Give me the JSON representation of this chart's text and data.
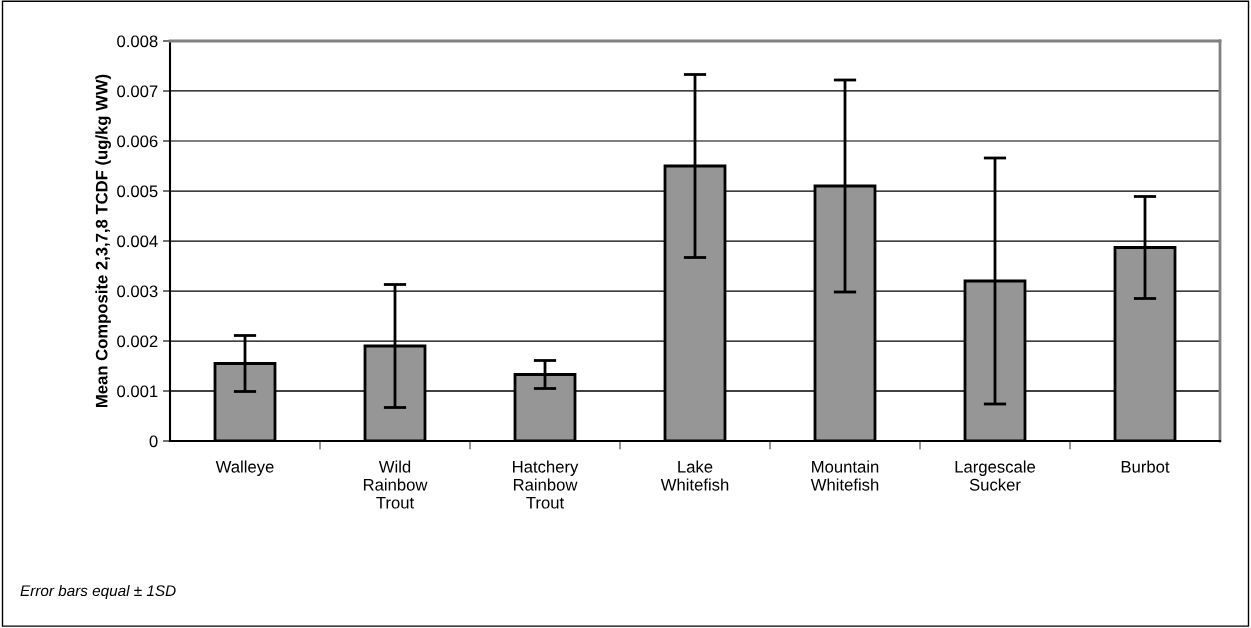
{
  "chart_data": {
    "type": "bar",
    "ylabel": "Mean Composite 2,3,7,8 TCDF (ug/kg WW)",
    "categories": [
      "Walleye",
      "Wild\nRainbow\nTrout",
      "Hatchery\nRainbow\nTrout",
      "Lake\nWhitefish",
      "Mountain\nWhitefish",
      "Largescale\nSucker",
      "Burbot"
    ],
    "values": [
      0.00155,
      0.0019,
      0.00133,
      0.0055,
      0.0051,
      0.0032,
      0.00387
    ],
    "errors": [
      0.00056,
      0.00123,
      0.00028,
      0.00183,
      0.00212,
      0.00246,
      0.00102
    ],
    "color": "#969696",
    "ylim": [
      0,
      0.008
    ],
    "yticks": [
      0,
      0.001,
      0.002,
      0.003,
      0.004,
      0.005,
      0.006,
      0.007,
      0.008
    ],
    "grid": "y",
    "annotations": [
      "Error bars equal ± 1SD"
    ]
  }
}
